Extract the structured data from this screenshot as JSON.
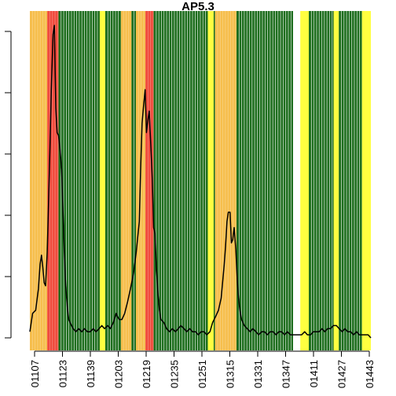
{
  "chart_data": {
    "type": "line",
    "title": "AP5.3",
    "xlabel": "",
    "ylabel": "",
    "x_ticks": [
      "01107",
      "01123",
      "01139",
      "01203",
      "01219",
      "01235",
      "01251",
      "01315",
      "01331",
      "01347",
      "01411",
      "01427",
      "01443"
    ],
    "y_ticks": [
      "",
      "",
      "",
      "",
      "",
      ""
    ],
    "xlim": [
      0,
      100
    ],
    "ylim": [
      0,
      1
    ],
    "band_colors": {
      "orange": "#F6BE4C",
      "red": "#F04B3C",
      "green": "#1E6E1E",
      "yellow": "#FFFF40",
      "white": "#FFFFFF"
    },
    "bands": [
      {
        "start": 0.0,
        "end": 5.1,
        "color": "orange"
      },
      {
        "start": 5.1,
        "end": 8.4,
        "color": "red"
      },
      {
        "start": 8.4,
        "end": 20.5,
        "color": "green"
      },
      {
        "start": 20.5,
        "end": 22.1,
        "color": "yellow"
      },
      {
        "start": 22.1,
        "end": 26.7,
        "color": "green"
      },
      {
        "start": 26.7,
        "end": 29.8,
        "color": "orange"
      },
      {
        "start": 29.8,
        "end": 31.1,
        "color": "green"
      },
      {
        "start": 31.1,
        "end": 33.9,
        "color": "orange"
      },
      {
        "start": 33.9,
        "end": 36.3,
        "color": "red"
      },
      {
        "start": 36.3,
        "end": 52.2,
        "color": "green"
      },
      {
        "start": 52.2,
        "end": 53.9,
        "color": "yellow"
      },
      {
        "start": 53.9,
        "end": 54.3,
        "color": "green"
      },
      {
        "start": 54.3,
        "end": 60.6,
        "color": "orange"
      },
      {
        "start": 60.6,
        "end": 77.2,
        "color": "green"
      },
      {
        "start": 77.2,
        "end": 79.3,
        "color": "white"
      },
      {
        "start": 79.3,
        "end": 81.8,
        "color": "yellow"
      },
      {
        "start": 81.8,
        "end": 89.1,
        "color": "green"
      },
      {
        "start": 89.1,
        "end": 90.6,
        "color": "yellow"
      },
      {
        "start": 90.6,
        "end": 97.4,
        "color": "green"
      },
      {
        "start": 97.4,
        "end": 100.0,
        "color": "yellow"
      }
    ],
    "series": [
      {
        "line_color": "#000000",
        "points": [
          [
            0.0,
            0.02
          ],
          [
            0.8,
            0.08
          ],
          [
            1.7,
            0.09
          ],
          [
            2.5,
            0.16
          ],
          [
            3.0,
            0.24
          ],
          [
            3.4,
            0.27
          ],
          [
            3.8,
            0.23
          ],
          [
            4.2,
            0.18
          ],
          [
            4.6,
            0.17
          ],
          [
            5.1,
            0.28
          ],
          [
            5.5,
            0.45
          ],
          [
            5.9,
            0.62
          ],
          [
            6.3,
            0.81
          ],
          [
            6.8,
            0.99
          ],
          [
            7.2,
            1.02
          ],
          [
            7.6,
            0.75
          ],
          [
            8.0,
            0.67
          ],
          [
            8.4,
            0.66
          ],
          [
            8.9,
            0.61
          ],
          [
            9.3,
            0.55
          ],
          [
            9.7,
            0.42
          ],
          [
            10.1,
            0.28
          ],
          [
            10.5,
            0.17
          ],
          [
            11.0,
            0.1
          ],
          [
            11.4,
            0.06
          ],
          [
            11.8,
            0.05
          ],
          [
            12.7,
            0.03
          ],
          [
            13.5,
            0.02
          ],
          [
            14.3,
            0.03
          ],
          [
            15.2,
            0.02
          ],
          [
            16.0,
            0.03
          ],
          [
            16.9,
            0.02
          ],
          [
            17.7,
            0.02
          ],
          [
            18.6,
            0.03
          ],
          [
            19.4,
            0.02
          ],
          [
            20.3,
            0.03
          ],
          [
            21.1,
            0.04
          ],
          [
            21.9,
            0.03
          ],
          [
            22.8,
            0.04
          ],
          [
            23.6,
            0.03
          ],
          [
            24.5,
            0.05
          ],
          [
            25.3,
            0.08
          ],
          [
            25.7,
            0.07
          ],
          [
            26.2,
            0.06
          ],
          [
            27.0,
            0.06
          ],
          [
            27.8,
            0.08
          ],
          [
            28.7,
            0.12
          ],
          [
            29.5,
            0.16
          ],
          [
            30.4,
            0.21
          ],
          [
            31.2,
            0.28
          ],
          [
            32.1,
            0.38
          ],
          [
            32.5,
            0.56
          ],
          [
            32.9,
            0.7
          ],
          [
            33.3,
            0.75
          ],
          [
            33.8,
            0.81
          ],
          [
            34.2,
            0.67
          ],
          [
            34.6,
            0.71
          ],
          [
            35.0,
            0.74
          ],
          [
            35.5,
            0.62
          ],
          [
            35.9,
            0.52
          ],
          [
            36.3,
            0.36
          ],
          [
            36.7,
            0.34
          ],
          [
            37.1,
            0.23
          ],
          [
            37.6,
            0.14
          ],
          [
            38.0,
            0.09
          ],
          [
            38.4,
            0.06
          ],
          [
            39.3,
            0.05
          ],
          [
            40.1,
            0.03
          ],
          [
            41.0,
            0.02
          ],
          [
            41.8,
            0.03
          ],
          [
            42.7,
            0.02
          ],
          [
            43.5,
            0.03
          ],
          [
            44.3,
            0.04
          ],
          [
            45.2,
            0.03
          ],
          [
            46.0,
            0.02
          ],
          [
            46.9,
            0.03
          ],
          [
            47.7,
            0.02
          ],
          [
            48.6,
            0.02
          ],
          [
            49.4,
            0.01
          ],
          [
            50.2,
            0.02
          ],
          [
            51.1,
            0.02
          ],
          [
            51.9,
            0.01
          ],
          [
            52.8,
            0.02
          ],
          [
            53.6,
            0.05
          ],
          [
            54.5,
            0.07
          ],
          [
            55.3,
            0.09
          ],
          [
            56.1,
            0.13
          ],
          [
            57.0,
            0.24
          ],
          [
            57.4,
            0.3
          ],
          [
            57.8,
            0.38
          ],
          [
            58.2,
            0.41
          ],
          [
            58.7,
            0.41
          ],
          [
            59.1,
            0.31
          ],
          [
            59.5,
            0.32
          ],
          [
            59.9,
            0.36
          ],
          [
            60.4,
            0.29
          ],
          [
            60.8,
            0.19
          ],
          [
            61.2,
            0.13
          ],
          [
            61.6,
            0.09
          ],
          [
            62.1,
            0.06
          ],
          [
            62.9,
            0.04
          ],
          [
            63.7,
            0.03
          ],
          [
            64.6,
            0.02
          ],
          [
            65.4,
            0.03
          ],
          [
            66.3,
            0.02
          ],
          [
            67.1,
            0.01
          ],
          [
            68.0,
            0.02
          ],
          [
            68.8,
            0.02
          ],
          [
            69.6,
            0.01
          ],
          [
            70.5,
            0.02
          ],
          [
            71.3,
            0.02
          ],
          [
            72.2,
            0.01
          ],
          [
            73.0,
            0.02
          ],
          [
            73.8,
            0.02
          ],
          [
            74.7,
            0.01
          ],
          [
            75.5,
            0.02
          ],
          [
            76.4,
            0.01
          ],
          [
            77.2,
            0.01
          ],
          [
            78.1,
            0.01
          ],
          [
            78.9,
            0.01
          ],
          [
            79.7,
            0.01
          ],
          [
            80.6,
            0.02
          ],
          [
            81.4,
            0.01
          ],
          [
            82.3,
            0.01
          ],
          [
            83.1,
            0.02
          ],
          [
            84.0,
            0.02
          ],
          [
            84.8,
            0.02
          ],
          [
            85.7,
            0.03
          ],
          [
            86.5,
            0.02
          ],
          [
            87.3,
            0.03
          ],
          [
            88.2,
            0.03
          ],
          [
            89.0,
            0.04
          ],
          [
            89.9,
            0.04
          ],
          [
            90.7,
            0.03
          ],
          [
            91.6,
            0.02
          ],
          [
            92.4,
            0.03
          ],
          [
            93.2,
            0.02
          ],
          [
            94.1,
            0.02
          ],
          [
            94.9,
            0.01
          ],
          [
            95.8,
            0.02
          ],
          [
            96.6,
            0.01
          ],
          [
            97.5,
            0.01
          ],
          [
            98.3,
            0.01
          ],
          [
            99.2,
            0.01
          ],
          [
            100.0,
            0.0
          ]
        ]
      }
    ]
  }
}
